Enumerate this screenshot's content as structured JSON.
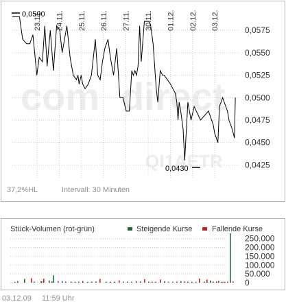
{
  "watermark": {
    "brand_part1": "com",
    "brand_part2": "direct",
    "symbol_text": "QI1AETR"
  },
  "price_chart": {
    "footer_left": "37,2%HL",
    "footer_interval": "Intervall: 30 Minuten",
    "max_label": "0,0590",
    "min_label": "0,0430"
  },
  "volume_chart": {
    "title": "Stück-Volumen (rot-grün)",
    "legend_up": "Steigende Kurse",
    "legend_down": "Fallende Kurse"
  },
  "timestamp": {
    "date": "03.12.09",
    "time": "11:59 Uhr"
  },
  "colors": {
    "up": "#1a6b3a",
    "down": "#c62020",
    "line": "#000000",
    "grid": "#c8c8c8",
    "frame": "#b4b4b4"
  },
  "chart_data": [
    {
      "type": "line",
      "title": "",
      "xlabel": "",
      "ylabel": "",
      "x_tick_labels": [
        "23.11.",
        "24.11.",
        "25.11.",
        "26.11.",
        "27.11.",
        "30.11.",
        "01.12.",
        "02.12.",
        "03.12."
      ],
      "y_tick_labels": [
        "0,0425",
        "0,0450",
        "0,0475",
        "0,0500",
        "0,0525",
        "0,0550",
        "0,0575"
      ],
      "ylim": [
        0.041,
        0.0595
      ],
      "grid": true,
      "series": [
        {
          "x": [
            0,
            0.45,
            0.65,
            0.9,
            1.1,
            1.3,
            1.55,
            1.7,
            1.9,
            2.05,
            2.2,
            2.4,
            2.6,
            2.8,
            3.0,
            3.15,
            3.3,
            3.45,
            3.65,
            3.85,
            4.05,
            4.15,
            4.22,
            4.35,
            4.45,
            4.6,
            4.8,
            5.0,
            5.25,
            5.4,
            5.55,
            5.7,
            5.85,
            6.05,
            6.2,
            6.4,
            6.6,
            6.8,
            7.0,
            7.2,
            7.4,
            7.55,
            7.65,
            7.75,
            7.85,
            7.95,
            8.05,
            8.15,
            8.35,
            8.5,
            8.65,
            8.75,
            8.9,
            9.0,
            9.1,
            9.2,
            9.35,
            9.5,
            9.6,
            9.8,
            10.0,
            10.15,
            10.3,
            10.4,
            10.48,
            10.55,
            10.65,
            10.8,
            10.9,
            11.1,
            11.3,
            11.5,
            11.9,
            12.4,
            12.7,
            12.8,
            12.9,
            13.0,
            13.1,
            13.2,
            13.3,
            13.4,
            13.5,
            13.6,
            13.7,
            13.9,
            14.05,
            14.1
          ],
          "y": [
            0.059,
            0.059,
            0.0565,
            0.056,
            0.056,
            0.057,
            0.0525,
            0.0545,
            0.054,
            0.058,
            0.0535,
            0.0575,
            0.053,
            0.058,
            0.0575,
            0.055,
            0.0565,
            0.058,
            0.0545,
            0.0525,
            0.052,
            0.0525,
            0.0515,
            0.0525,
            0.0515,
            0.051,
            0.0515,
            0.0525,
            0.0565,
            0.0525,
            0.052,
            0.054,
            0.0555,
            0.0565,
            0.0545,
            0.0525,
            0.0555,
            0.05,
            0.05,
            0.0485,
            0.0485,
            0.053,
            0.0525,
            0.053,
            0.0525,
            0.0535,
            0.058,
            0.054,
            0.0585,
            0.0585,
            0.0585,
            0.058,
            0.056,
            0.0535,
            0.051,
            0.0495,
            0.053,
            0.0525,
            0.0525,
            0.052,
            0.0515,
            0.051,
            0.0505,
            0.0495,
            0.0475,
            0.0495,
            0.0485,
            0.0465,
            0.043,
            0.0495,
            0.0475,
            0.049,
            0.0475,
            0.0485,
            0.047,
            0.046,
            0.0455,
            0.045,
            0.049,
            0.0495,
            0.05,
            0.0495,
            0.049,
            0.0485,
            0.0475,
            0.0465,
            0.0455,
            0.05
          ]
        }
      ]
    },
    {
      "type": "bar",
      "title": "Stück-Volumen (rot-grün)",
      "y_tick_labels": [
        "0",
        "50.000",
        "100.000",
        "150.000",
        "200.000",
        "250.000"
      ],
      "ylim": [
        0,
        280000
      ],
      "series": [
        {
          "name": "Steigende Kurse",
          "x": [
            6,
            20,
            34,
            45,
            56,
            62,
            75,
            88,
            99,
            112,
            124,
            139,
            151,
            164,
            176,
            189,
            201,
            211,
            224,
            236,
            248,
            258,
            270,
            282,
            291,
            300,
            307,
            312,
            320
          ],
          "values": [
            4000,
            22000,
            6000,
            8000,
            13000,
            42000,
            9000,
            6000,
            6000,
            5000,
            7000,
            5000,
            6000,
            6000,
            5000,
            7000,
            6000,
            5000,
            8000,
            5000,
            9000,
            6000,
            5000,
            6000,
            12000,
            7000,
            4000,
            5000,
            280000
          ]
        },
        {
          "name": "Fallende Kurse",
          "x": [
            10,
            30,
            44,
            48,
            60,
            69,
            80,
            94,
            105,
            118,
            130,
            145,
            158,
            170,
            183,
            195,
            206,
            218,
            230,
            242,
            253,
            264,
            275,
            286,
            295,
            303,
            309,
            316,
            324
          ],
          "values": [
            9000,
            25000,
            7000,
            22000,
            8000,
            10000,
            6000,
            5000,
            10000,
            6000,
            22000,
            6000,
            13000,
            6000,
            8000,
            20000,
            6000,
            18000,
            5000,
            6000,
            7000,
            5000,
            24000,
            18000,
            7000,
            11000,
            5000,
            6000,
            7000
          ]
        }
      ]
    }
  ]
}
